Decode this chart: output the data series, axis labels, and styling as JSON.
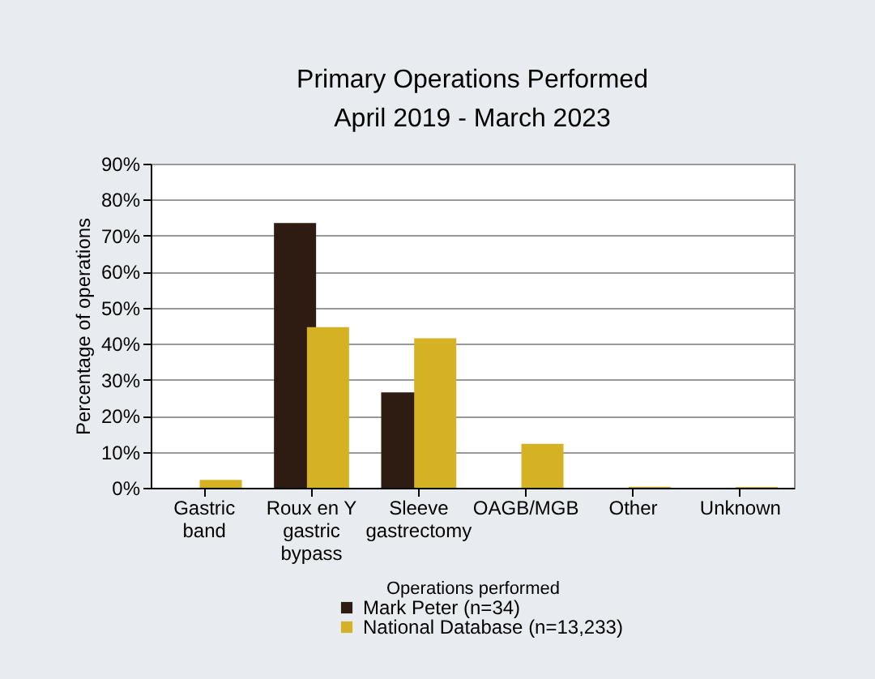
{
  "chart_data": {
    "type": "bar",
    "title": "Primary Operations Performed",
    "subtitle": "April 2019 - March 2023",
    "xlabel": "Operations performed",
    "ylabel": "Percentage of operations",
    "categories": [
      "Gastric\nband",
      "Roux en Y\ngastric\nbypass",
      "Sleeve\ngastrectomy",
      "OAGB/MGB",
      "Other",
      "Unknown"
    ],
    "series": [
      {
        "name": "Mark Peter (n=34)",
        "color": "#2e1c12",
        "values": [
          0,
          73.5,
          26.5,
          0,
          0,
          0
        ]
      },
      {
        "name": "National Database (n=13,233)",
        "color": "#d4b224",
        "values": [
          2.2,
          44.6,
          41.5,
          12.2,
          0.3,
          0.2
        ]
      }
    ],
    "ylim": [
      0,
      90
    ],
    "yticks": [
      {
        "value": 0,
        "label": "0%"
      },
      {
        "value": 10,
        "label": "10%"
      },
      {
        "value": 20,
        "label": "20%"
      },
      {
        "value": 30,
        "label": "30%"
      },
      {
        "value": 40,
        "label": "40%"
      },
      {
        "value": 50,
        "label": "50%"
      },
      {
        "value": 60,
        "label": "60%"
      },
      {
        "value": 70,
        "label": "70%"
      },
      {
        "value": 80,
        "label": "80%"
      },
      {
        "value": 90,
        "label": "90%"
      }
    ],
    "grid": "y",
    "legend": "bottom"
  }
}
